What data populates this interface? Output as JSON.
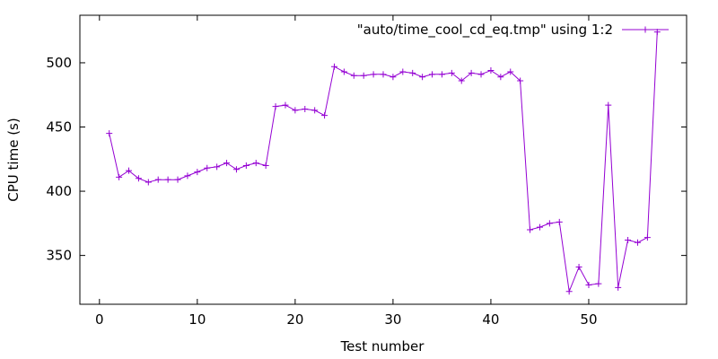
{
  "chart_data": {
    "type": "line",
    "title": "",
    "xlabel": "Test number",
    "ylabel": "CPU time (s)",
    "xlim": [
      -2,
      60
    ],
    "ylim": [
      312,
      537
    ],
    "x_ticks": [
      0,
      10,
      20,
      30,
      40,
      50
    ],
    "y_ticks": [
      350,
      400,
      450,
      500
    ],
    "grid": false,
    "legend_position": "top-right",
    "series": [
      {
        "name": "\"auto/time_cool_cd_eq.tmp\" using 1:2",
        "color": "#9400d3",
        "marker": "plus",
        "x": [
          1,
          2,
          3,
          4,
          5,
          6,
          7,
          8,
          9,
          10,
          11,
          12,
          13,
          14,
          15,
          16,
          17,
          18,
          19,
          20,
          21,
          22,
          23,
          24,
          25,
          26,
          27,
          28,
          29,
          30,
          31,
          32,
          33,
          34,
          35,
          36,
          37,
          38,
          39,
          40,
          41,
          42,
          43,
          44,
          45,
          46,
          47,
          48,
          49,
          50,
          51,
          52,
          53,
          54,
          55,
          56,
          57
        ],
        "values": [
          445,
          411,
          416,
          410,
          407,
          409,
          409,
          409,
          412,
          415,
          418,
          419,
          422,
          417,
          420,
          422,
          420,
          466,
          467,
          463,
          464,
          463,
          459,
          497,
          493,
          490,
          490,
          491,
          491,
          489,
          493,
          492,
          489,
          491,
          491,
          492,
          486,
          492,
          491,
          494,
          489,
          493,
          486,
          370,
          372,
          375,
          376,
          322,
          341,
          327,
          328,
          467,
          325,
          362,
          360,
          364,
          524
        ]
      }
    ]
  }
}
